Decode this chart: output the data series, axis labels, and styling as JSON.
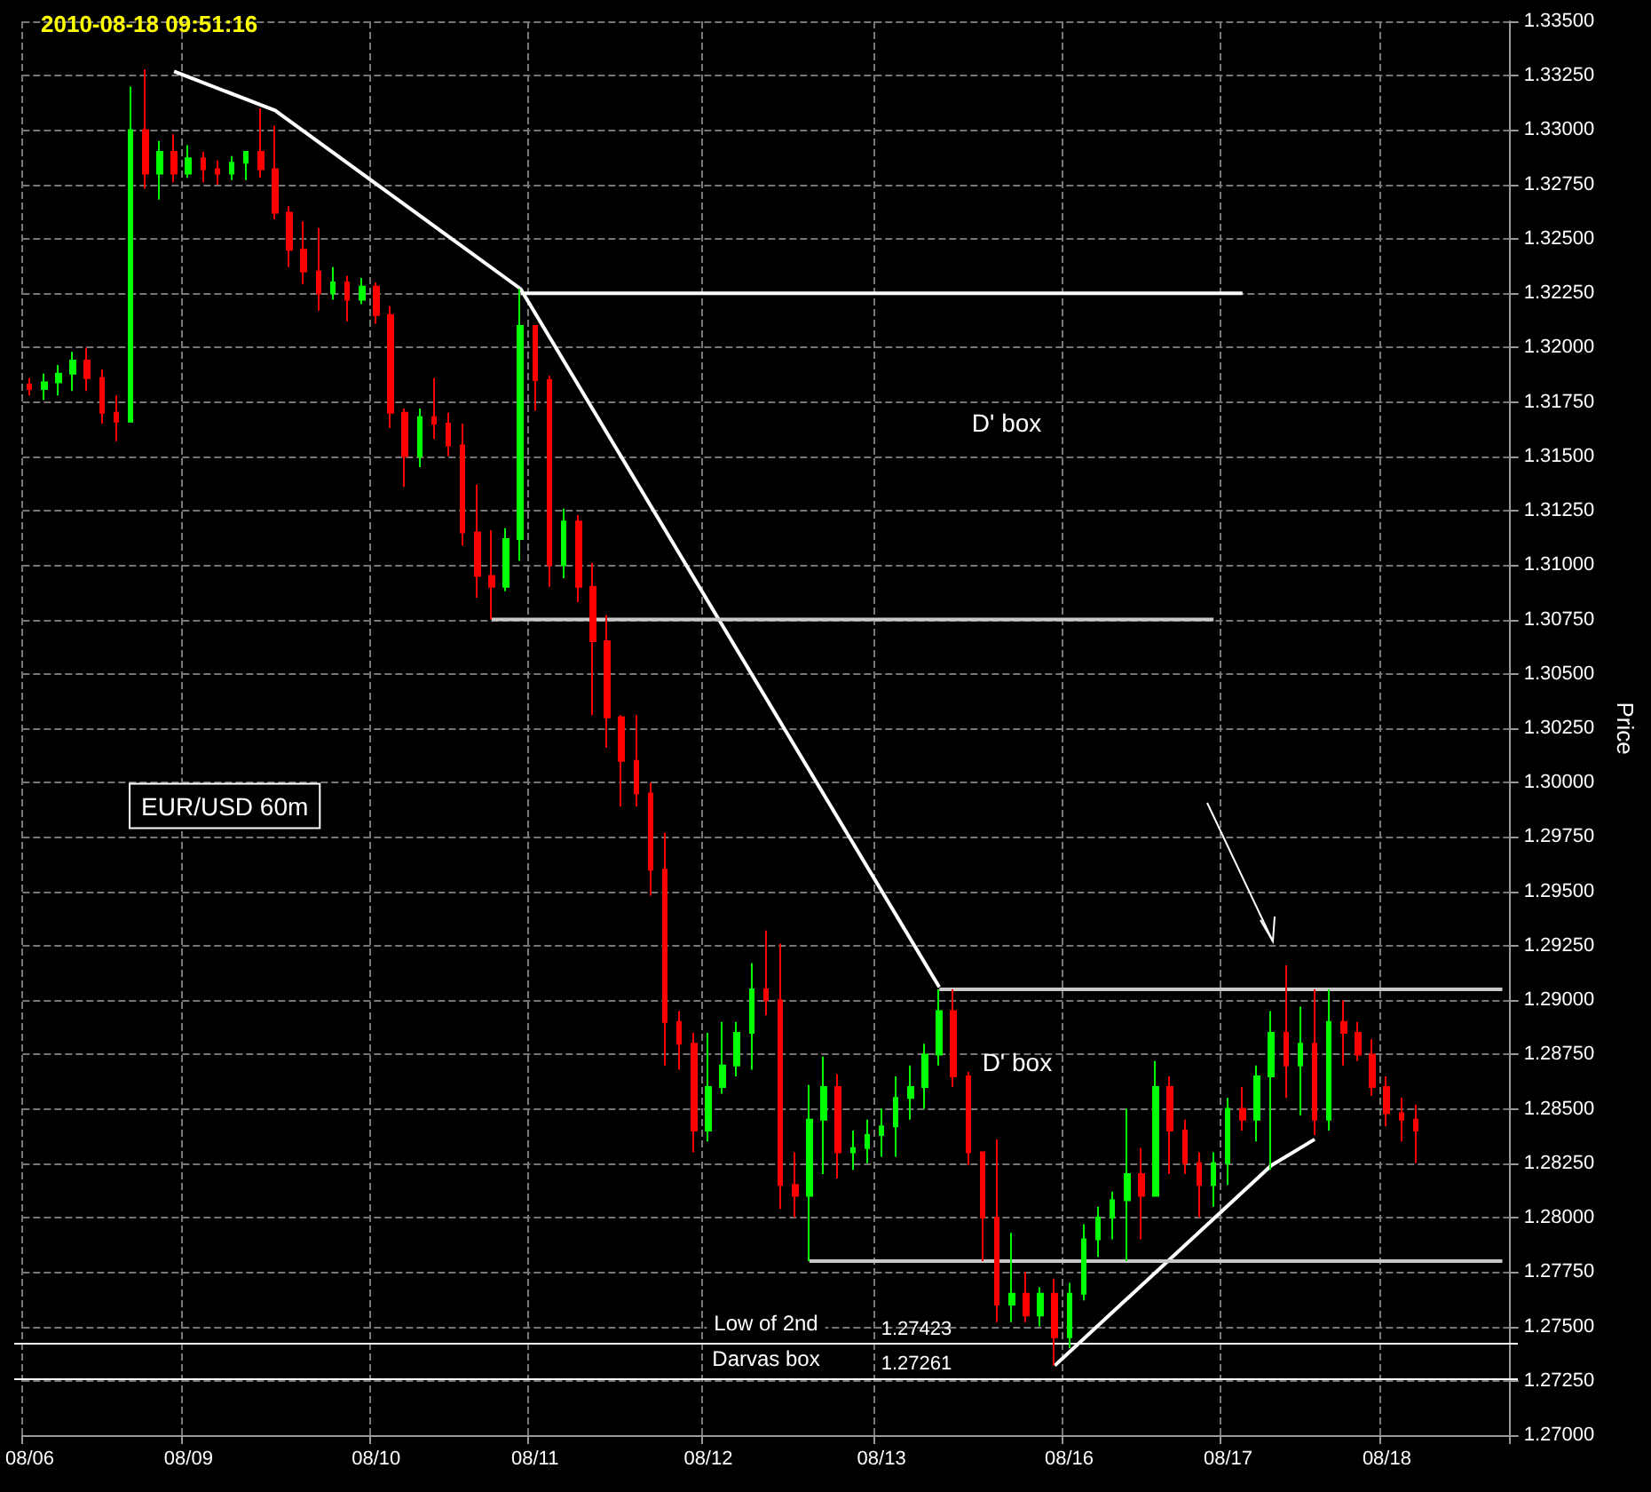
{
  "chart_data": {
    "type": "candlestick",
    "title": "2010-08-18 09:51:16",
    "ylabel": "Price",
    "grid": true,
    "categories": [
      "08/06",
      null,
      null,
      null,
      null,
      null,
      null,
      null,
      null,
      null,
      null,
      "08/09",
      null,
      null,
      null,
      null,
      null,
      null,
      null,
      null,
      null,
      null,
      null,
      null,
      "08/10",
      null,
      null,
      null,
      null,
      null,
      null,
      null,
      null,
      null,
      null,
      "08/11",
      null,
      null,
      null,
      null,
      null,
      null,
      null,
      null,
      null,
      null,
      null,
      "08/12",
      null,
      null,
      null,
      null,
      null,
      null,
      null,
      null,
      null,
      null,
      null,
      "08/13",
      null,
      null,
      null,
      null,
      null,
      null,
      null,
      null,
      null,
      null,
      null,
      null,
      "08/16",
      null,
      null,
      null,
      null,
      null,
      null,
      null,
      null,
      null,
      null,
      "08/17",
      null,
      null,
      null,
      null,
      null,
      null,
      null,
      null,
      null,
      null,
      "08/18",
      null,
      null,
      null,
      null,
      null,
      null,
      null,
      null
    ],
    "ylim": [
      1.27,
      1.335
    ],
    "yticks": [
      {
        "value": 1.27,
        "label": "1.27000"
      },
      {
        "value": 1.2725,
        "label": "1.27250"
      },
      {
        "value": 1.275,
        "label": "1.27500"
      },
      {
        "value": 1.2775,
        "label": "1.27750"
      },
      {
        "value": 1.28,
        "label": "1.28000"
      },
      {
        "value": 1.2825,
        "label": "1.28250"
      },
      {
        "value": 1.285,
        "label": "1.28500"
      },
      {
        "value": 1.2875,
        "label": "1.28750"
      },
      {
        "value": 1.29,
        "label": "1.29000"
      },
      {
        "value": 1.2925,
        "label": "1.29250"
      },
      {
        "value": 1.295,
        "label": "1.29500"
      },
      {
        "value": 1.2975,
        "label": "1.29750"
      },
      {
        "value": 1.3,
        "label": "1.30000"
      },
      {
        "value": 1.3025,
        "label": "1.30250"
      },
      {
        "value": 1.305,
        "label": "1.30500"
      },
      {
        "value": 1.3075,
        "label": "1.30750"
      },
      {
        "value": 1.31,
        "label": "1.31000"
      },
      {
        "value": 1.3125,
        "label": "1.31250"
      },
      {
        "value": 1.315,
        "label": "1.31500"
      },
      {
        "value": 1.3175,
        "label": "1.31750"
      },
      {
        "value": 1.32,
        "label": "1.32000"
      },
      {
        "value": 1.3225,
        "label": "1.32250"
      },
      {
        "value": 1.325,
        "label": "1.32500"
      },
      {
        "value": 1.3275,
        "label": "1.32750"
      },
      {
        "value": 1.33,
        "label": "1.33000"
      },
      {
        "value": 1.3325,
        "label": "1.33250"
      },
      {
        "value": 1.335,
        "label": "1.33500"
      }
    ],
    "ohlc": [
      [
        1.3183,
        1.3186,
        1.3178,
        1.3181
      ],
      [
        1.3181,
        1.3188,
        1.3176,
        1.3184
      ],
      [
        1.3184,
        1.3192,
        1.3178,
        1.3188
      ],
      [
        1.3188,
        1.3198,
        1.318,
        1.3194
      ],
      [
        1.3194,
        1.32,
        1.318,
        1.3186
      ],
      [
        1.3186,
        1.319,
        1.3165,
        1.317
      ],
      [
        1.317,
        1.3178,
        1.3157,
        1.3166
      ],
      [
        1.3166,
        1.332,
        1.3166,
        1.33
      ],
      [
        1.33,
        1.3328,
        1.3273,
        1.328
      ],
      [
        1.328,
        1.3295,
        1.3268,
        1.329
      ],
      [
        1.329,
        1.3298,
        1.3276,
        1.328
      ],
      [
        1.328,
        1.3293,
        1.3278,
        1.3287
      ],
      [
        1.3287,
        1.329,
        1.3276,
        1.3282
      ],
      [
        1.3282,
        1.3286,
        1.3275,
        1.328
      ],
      [
        1.328,
        1.3288,
        1.3277,
        1.3285
      ],
      [
        1.3285,
        1.329,
        1.3277,
        1.329
      ],
      [
        1.329,
        1.331,
        1.3278,
        1.3282
      ],
      [
        1.3282,
        1.3302,
        1.3259,
        1.3262
      ],
      [
        1.3262,
        1.3265,
        1.3237,
        1.3245
      ],
      [
        1.3245,
        1.3258,
        1.3229,
        1.3235
      ],
      [
        1.3235,
        1.3255,
        1.3217,
        1.3225
      ],
      [
        1.3225,
        1.3237,
        1.3222,
        1.323
      ],
      [
        1.323,
        1.3233,
        1.3212,
        1.3222
      ],
      [
        1.3222,
        1.3232,
        1.322,
        1.3228
      ],
      [
        1.3228,
        1.323,
        1.3211,
        1.3215
      ],
      [
        1.3215,
        1.3219,
        1.3163,
        1.317
      ],
      [
        1.317,
        1.3172,
        1.3136,
        1.315
      ],
      [
        1.315,
        1.3172,
        1.3145,
        1.3168
      ],
      [
        1.3168,
        1.3186,
        1.3158,
        1.3165
      ],
      [
        1.3165,
        1.317,
        1.315,
        1.3155
      ],
      [
        1.3155,
        1.3165,
        1.3109,
        1.3115
      ],
      [
        1.3115,
        1.3137,
        1.3085,
        1.3095
      ],
      [
        1.3095,
        1.3116,
        1.3075,
        1.309
      ],
      [
        1.309,
        1.3117,
        1.3088,
        1.3112
      ],
      [
        1.3112,
        1.3227,
        1.3102,
        1.321
      ],
      [
        1.321,
        1.321,
        1.3171,
        1.3185
      ],
      [
        1.3185,
        1.3187,
        1.309,
        1.31
      ],
      [
        1.31,
        1.3126,
        1.3094,
        1.312
      ],
      [
        1.312,
        1.3123,
        1.3083,
        1.309
      ],
      [
        1.309,
        1.3101,
        1.3031,
        1.3065
      ],
      [
        1.3065,
        1.3077,
        1.3016,
        1.303
      ],
      [
        1.303,
        1.3031,
        1.2989,
        1.301
      ],
      [
        1.301,
        1.3031,
        1.2989,
        1.2995
      ],
      [
        1.2995,
        1.3,
        1.2948,
        1.296
      ],
      [
        1.296,
        1.2977,
        1.287,
        1.289
      ],
      [
        1.289,
        1.2895,
        1.2868,
        1.288
      ],
      [
        1.288,
        1.2885,
        1.283,
        1.284
      ],
      [
        1.284,
        1.2885,
        1.2835,
        1.286
      ],
      [
        1.286,
        1.289,
        1.2857,
        1.287
      ],
      [
        1.287,
        1.289,
        1.2865,
        1.2885
      ],
      [
        1.2885,
        1.2917,
        1.2868,
        1.2905
      ],
      [
        1.2905,
        1.2932,
        1.2893,
        1.29
      ],
      [
        1.29,
        1.2926,
        1.2804,
        1.2815
      ],
      [
        1.2815,
        1.283,
        1.28,
        1.281
      ],
      [
        1.281,
        1.2861,
        1.278,
        1.2845
      ],
      [
        1.2845,
        1.2874,
        1.282,
        1.286
      ],
      [
        1.286,
        1.2866,
        1.2818,
        1.283
      ],
      [
        1.283,
        1.284,
        1.2822,
        1.2832
      ],
      [
        1.2832,
        1.2845,
        1.2825,
        1.2838
      ],
      [
        1.2838,
        1.285,
        1.2828,
        1.2842
      ],
      [
        1.2842,
        1.2865,
        1.2828,
        1.2855
      ],
      [
        1.2855,
        1.287,
        1.2845,
        1.286
      ],
      [
        1.286,
        1.288,
        1.285,
        1.2875
      ],
      [
        1.2875,
        1.2905,
        1.287,
        1.2895
      ],
      [
        1.2895,
        1.2905,
        1.286,
        1.2865
      ],
      [
        1.2865,
        1.2867,
        1.2824,
        1.283
      ],
      [
        1.283,
        1.283,
        1.278,
        1.28
      ],
      [
        1.28,
        1.2836,
        1.2752,
        1.276
      ],
      [
        1.276,
        1.2793,
        1.2752,
        1.2765
      ],
      [
        1.2765,
        1.2775,
        1.2752,
        1.2755
      ],
      [
        1.2755,
        1.2768,
        1.275,
        1.2765
      ],
      [
        1.2765,
        1.2772,
        1.2732,
        1.2745
      ],
      [
        1.2745,
        1.277,
        1.274,
        1.2765
      ],
      [
        1.2765,
        1.2797,
        1.2762,
        1.279
      ],
      [
        1.279,
        1.2805,
        1.2782,
        1.28
      ],
      [
        1.28,
        1.2812,
        1.279,
        1.2808
      ],
      [
        1.2808,
        1.285,
        1.278,
        1.282
      ],
      [
        1.282,
        1.2832,
        1.279,
        1.281
      ],
      [
        1.281,
        1.2872,
        1.281,
        1.286
      ],
      [
        1.286,
        1.2865,
        1.282,
        1.284
      ],
      [
        1.284,
        1.2845,
        1.282,
        1.2825
      ],
      [
        1.2825,
        1.283,
        1.28,
        1.2815
      ],
      [
        1.2815,
        1.283,
        1.2805,
        1.2825
      ],
      [
        1.2825,
        1.2855,
        1.2815,
        1.285
      ],
      [
        1.285,
        1.286,
        1.284,
        1.2845
      ],
      [
        1.2845,
        1.287,
        1.2835,
        1.2865
      ],
      [
        1.2865,
        1.2895,
        1.2822,
        1.2885
      ],
      [
        1.2885,
        1.2916,
        1.2855,
        1.287
      ],
      [
        1.287,
        1.2897,
        1.2847,
        1.288
      ],
      [
        1.288,
        1.2905,
        1.2838,
        1.2845
      ],
      [
        1.2845,
        1.2905,
        1.284,
        1.289
      ],
      [
        1.289,
        1.29,
        1.287,
        1.2885
      ],
      [
        1.2885,
        1.289,
        1.2872,
        1.2875
      ],
      [
        1.2875,
        1.2882,
        1.2856,
        1.286
      ],
      [
        1.286,
        1.2865,
        1.2842,
        1.2848
      ],
      [
        1.2848,
        1.2855,
        1.2835,
        1.2845
      ],
      [
        1.2845,
        1.2852,
        1.2825,
        1.284
      ],
      null,
      null,
      null,
      null,
      null,
      null
    ],
    "colors": [
      "#ff0000",
      "#00ff00",
      "#00ff00",
      "#00ff00",
      "#ff0000",
      "#ff0000",
      "#ff0000",
      "#00ff00",
      "#ff0000",
      "#00ff00",
      "#ff0000",
      "#00ff00",
      "#ff0000",
      "#ff0000",
      "#00ff00",
      "#00ff00",
      "#ff0000",
      "#ff0000",
      "#ff0000",
      "#ff0000",
      "#ff0000",
      "#00ff00",
      "#ff0000",
      "#00ff00",
      "#ff0000",
      "#ff0000",
      "#ff0000",
      "#00ff00",
      "#ff0000",
      "#ff0000",
      "#ff0000",
      "#ff0000",
      "#ff0000",
      "#00ff00",
      "#00ff00",
      "#ff0000",
      "#ff0000",
      "#00ff00",
      "#ff0000",
      "#ff0000",
      "#ff0000",
      "#ff0000",
      "#ff0000",
      "#ff0000",
      "#ff0000",
      "#ff0000",
      "#ff0000",
      "#00ff00",
      "#00ff00",
      "#00ff00",
      "#00ff00",
      "#ff0000",
      "#ff0000",
      "#ff0000",
      "#00ff00",
      "#00ff00",
      "#ff0000",
      "#00ff00",
      "#00ff00",
      "#00ff00",
      "#00ff00",
      "#00ff00",
      "#00ff00",
      "#00ff00",
      "#ff0000",
      "#ff0000",
      "#ff0000",
      "#ff0000",
      "#00ff00",
      "#ff0000",
      "#00ff00",
      "#ff0000",
      "#00ff00",
      "#00ff00",
      "#00ff00",
      "#00ff00",
      "#00ff00",
      "#ff0000",
      "#00ff00",
      "#ff0000",
      "#ff0000",
      "#ff0000",
      "#00ff00",
      "#00ff00",
      "#ff0000",
      "#00ff00",
      "#00ff00",
      "#ff0000",
      "#00ff00",
      "#ff0000",
      "#00ff00",
      "#ff0000",
      "#ff0000",
      "#ff0000",
      "#ff0000",
      "#ff0000",
      "#ff0000",
      null,
      null,
      null,
      null,
      null,
      null
    ],
    "series": [
      {
        "type": "line",
        "color": "#ffffff",
        "values": [
          null,
          null,
          null,
          null,
          null,
          null,
          null,
          null,
          null,
          null,
          1.3327,
          null,
          null,
          null,
          null,
          null,
          null,
          1.3309,
          null,
          null,
          null,
          null,
          null,
          null,
          null,
          null,
          null,
          null,
          null,
          null,
          null,
          null,
          null,
          null,
          1.3227,
          null,
          null,
          null,
          null,
          null,
          null,
          null,
          null,
          null,
          null,
          null,
          null,
          null,
          null,
          null,
          null,
          null,
          null,
          null,
          null,
          null,
          null,
          null,
          null,
          null,
          null,
          null,
          null,
          1.2906,
          null,
          null,
          null,
          null,
          null,
          null,
          null,
          null,
          null,
          null,
          null,
          null,
          null,
          null,
          null,
          null,
          null,
          null,
          null,
          null,
          null,
          null,
          null,
          null,
          null,
          null,
          null,
          null,
          null,
          null,
          null,
          null,
          null,
          null,
          null,
          null,
          null,
          null,
          null
        ]
      },
      {
        "type": "line",
        "color": "#ffffff",
        "values": [
          null,
          null,
          null,
          null,
          null,
          null,
          null,
          null,
          null,
          null,
          null,
          null,
          null,
          null,
          null,
          null,
          null,
          null,
          null,
          null,
          null,
          null,
          null,
          null,
          null,
          null,
          null,
          null,
          null,
          null,
          null,
          null,
          null,
          null,
          null,
          null,
          null,
          null,
          null,
          null,
          null,
          null,
          null,
          null,
          null,
          null,
          null,
          null,
          null,
          null,
          null,
          null,
          null,
          null,
          null,
          null,
          null,
          null,
          null,
          null,
          null,
          null,
          null,
          null,
          null,
          null,
          null,
          null,
          null,
          null,
          null,
          1.2732,
          null,
          null,
          null,
          null,
          null,
          null,
          null,
          null,
          null,
          null,
          null,
          null,
          null,
          null,
          1.2824,
          null,
          null,
          1.2836,
          null,
          null,
          null,
          null,
          null,
          null,
          null,
          null,
          null,
          null,
          null,
          null,
          null
        ]
      },
      {
        "type": "line",
        "color": "#ffffff",
        "values": [
          null,
          null,
          null,
          null,
          null,
          null,
          null,
          null,
          null,
          null,
          null,
          null,
          null,
          null,
          null,
          null,
          null,
          null,
          null,
          null,
          null,
          null,
          null,
          null,
          null,
          null,
          null,
          null,
          null,
          null,
          null,
          null,
          null,
          null,
          1.3225,
          null,
          null,
          null,
          null,
          null,
          null,
          null,
          null,
          null,
          null,
          null,
          null,
          null,
          null,
          null,
          null,
          null,
          null,
          null,
          null,
          null,
          null,
          null,
          null,
          null,
          null,
          null,
          null,
          null,
          null,
          null,
          null,
          null,
          null,
          null,
          null,
          null,
          null,
          null,
          null,
          null,
          null,
          null,
          null,
          null,
          null,
          null,
          null,
          null,
          1.3225,
          null,
          null,
          null,
          null,
          null,
          null,
          null,
          null,
          null,
          null,
          null,
          null,
          null,
          null,
          null,
          null,
          null,
          null
        ]
      },
      {
        "type": "line",
        "color": "#c8c8c8",
        "values": [
          null,
          null,
          null,
          null,
          null,
          null,
          null,
          null,
          null,
          null,
          null,
          null,
          null,
          null,
          null,
          null,
          null,
          null,
          null,
          null,
          null,
          null,
          null,
          null,
          null,
          null,
          null,
          null,
          null,
          null,
          null,
          null,
          1.3075,
          null,
          null,
          null,
          null,
          null,
          null,
          null,
          null,
          null,
          null,
          null,
          null,
          null,
          null,
          null,
          null,
          null,
          null,
          null,
          null,
          null,
          null,
          null,
          null,
          null,
          null,
          null,
          null,
          null,
          null,
          null,
          null,
          null,
          null,
          null,
          null,
          null,
          null,
          null,
          null,
          null,
          null,
          null,
          null,
          null,
          null,
          null,
          null,
          null,
          1.3075,
          null,
          null,
          null,
          null,
          null,
          null,
          null,
          null,
          null,
          null,
          null,
          null,
          null,
          null,
          null,
          null,
          null,
          null,
          null,
          null
        ]
      },
      {
        "type": "line",
        "color": "#c8c8c8",
        "values": [
          null,
          null,
          null,
          null,
          null,
          null,
          null,
          null,
          null,
          null,
          null,
          null,
          null,
          null,
          null,
          null,
          null,
          null,
          null,
          null,
          null,
          null,
          null,
          null,
          null,
          null,
          null,
          null,
          null,
          null,
          null,
          null,
          null,
          null,
          null,
          null,
          null,
          null,
          null,
          null,
          null,
          null,
          null,
          null,
          null,
          null,
          null,
          null,
          null,
          null,
          null,
          null,
          null,
          null,
          null,
          null,
          null,
          null,
          null,
          null,
          null,
          null,
          null,
          1.2905,
          null,
          null,
          null,
          null,
          null,
          null,
          null,
          null,
          null,
          null,
          null,
          null,
          null,
          null,
          null,
          null,
          null,
          null,
          null,
          null,
          null,
          null,
          null,
          null,
          null,
          null,
          null,
          null,
          null,
          null,
          null,
          null,
          null,
          null,
          null,
          null,
          null,
          null,
          1.2905
        ]
      },
      {
        "type": "line",
        "color": "#c8c8c8",
        "values": [
          null,
          null,
          null,
          null,
          null,
          null,
          null,
          null,
          null,
          null,
          null,
          null,
          null,
          null,
          null,
          null,
          null,
          null,
          null,
          null,
          null,
          null,
          null,
          null,
          null,
          null,
          null,
          null,
          null,
          null,
          null,
          null,
          null,
          null,
          null,
          null,
          null,
          null,
          null,
          null,
          null,
          null,
          null,
          null,
          null,
          null,
          null,
          null,
          null,
          null,
          null,
          null,
          null,
          null,
          1.278,
          null,
          null,
          null,
          null,
          null,
          null,
          null,
          null,
          null,
          null,
          null,
          null,
          null,
          null,
          null,
          null,
          null,
          null,
          null,
          null,
          null,
          null,
          null,
          null,
          null,
          null,
          null,
          null,
          null,
          null,
          null,
          null,
          null,
          null,
          null,
          null,
          null,
          null,
          null,
          null,
          null,
          null,
          null,
          null,
          null,
          null,
          null,
          1.278
        ]
      }
    ],
    "ref_lines": [
      {
        "axis": "y",
        "value": 1.27423,
        "label": "Low of 2nd",
        "color": "#ffffff"
      },
      {
        "axis": "y",
        "value": 1.27261,
        "label": "Darvas box",
        "color": "#ffffff"
      }
    ],
    "annotations": [
      "D' box",
      "D' box",
      "EUR/USD 60m",
      "1.27423",
      "1.27261"
    ]
  }
}
